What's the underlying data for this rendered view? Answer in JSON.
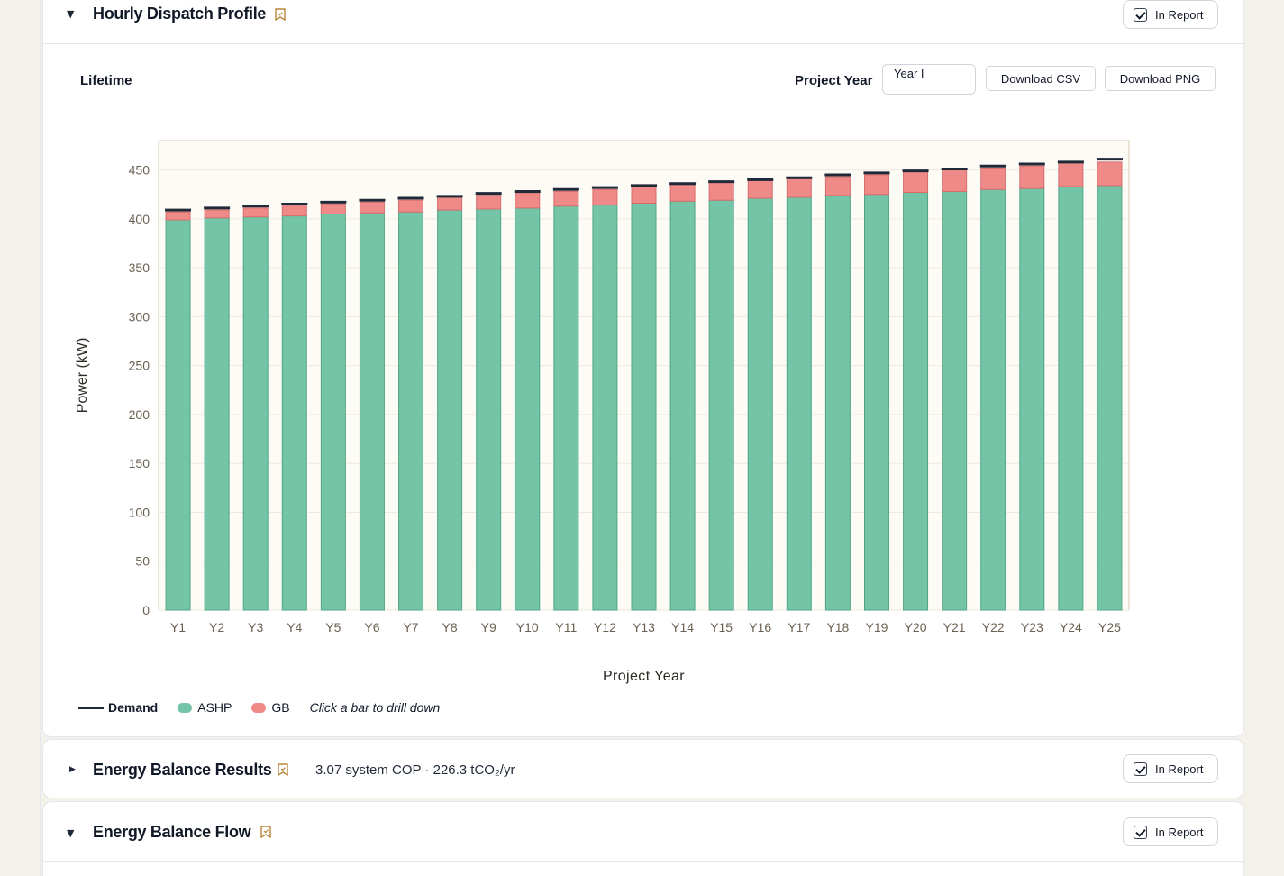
{
  "sections": {
    "dispatch": {
      "title": "Hourly Dispatch Profile",
      "toggle": "▼",
      "report_label": "In Report",
      "report_checked": true
    },
    "results": {
      "title": "Energy Balance Results",
      "toggle": "▶",
      "summary": "3.07 system COP · 226.3 tCO₂/yr",
      "report_label": "In Report",
      "report_checked": true
    },
    "flow": {
      "title": "Energy Balance Flow",
      "toggle": "▼",
      "report_label": "In Report",
      "report_checked": true
    }
  },
  "toolbar": {
    "mode_label": "Lifetime",
    "project_year_label": "Project Year",
    "project_year_value": "Year I",
    "download_csv": "Download CSV",
    "download_png": "Download PNG"
  },
  "legend": {
    "demand": "Demand",
    "ashp": "ASHP",
    "gb": "GB",
    "hint": "Click a bar to drill down"
  },
  "colors": {
    "ashp": "#74c4a8",
    "gb": "#ee8a88",
    "demand": "#1f2937",
    "plot_bg": "#fdfbf6",
    "accent": "#b8873a"
  },
  "chart_data": {
    "type": "bar",
    "stacked": true,
    "xlabel": "Project Year",
    "ylabel": "Power (kW)",
    "ylim": [
      0,
      480
    ],
    "yticks": [
      0,
      50,
      100,
      150,
      200,
      250,
      300,
      350,
      400,
      450
    ],
    "categories": [
      "Y1",
      "Y2",
      "Y3",
      "Y4",
      "Y5",
      "Y6",
      "Y7",
      "Y8",
      "Y9",
      "Y10",
      "Y11",
      "Y12",
      "Y13",
      "Y14",
      "Y15",
      "Y16",
      "Y17",
      "Y18",
      "Y19",
      "Y20",
      "Y21",
      "Y22",
      "Y23",
      "Y24",
      "Y25"
    ],
    "series": [
      {
        "name": "ASHP",
        "values": [
          399,
          401,
          402,
          403,
          405,
          406,
          407,
          409,
          410,
          411,
          413,
          414,
          416,
          418,
          419,
          421,
          422,
          424,
          425,
          427,
          428,
          430,
          431,
          433,
          434
        ]
      },
      {
        "name": "GB",
        "values": [
          8,
          8,
          9,
          10,
          10,
          11,
          12,
          13,
          14,
          15,
          15,
          16,
          17,
          17,
          18,
          18,
          19,
          19,
          20,
          21,
          22,
          22,
          23,
          24,
          24
        ]
      }
    ],
    "demand": [
      409,
      411,
      413,
      415,
      417,
      419,
      421,
      423,
      426,
      428,
      430,
      432,
      434,
      436,
      438,
      440,
      442,
      445,
      447,
      449,
      451,
      454,
      456,
      458,
      461
    ],
    "grid": true,
    "legend_position": "bottom-left"
  }
}
